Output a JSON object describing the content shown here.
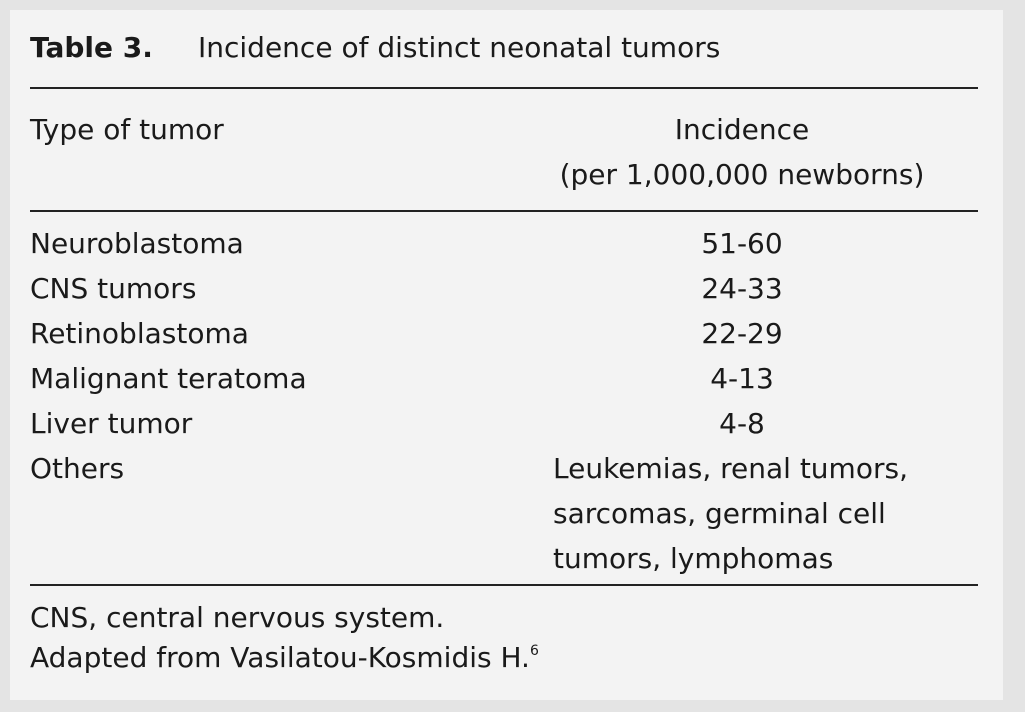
{
  "table": {
    "label": "Table 3.",
    "title": "Incidence of distinct neonatal tumors",
    "header": {
      "type": "Type of tumor",
      "incidence": "Incidence",
      "unit": "(per 1,000,000 newborns)"
    },
    "rows": [
      [
        "Neuroblastoma",
        "51-60"
      ],
      [
        "CNS tumors",
        "24-33"
      ],
      [
        "Retinoblastoma",
        "22-29"
      ],
      [
        "Malignant teratoma",
        "4-13"
      ],
      [
        "Liver tumor",
        "4-8"
      ],
      [
        "Others",
        [
          "Leukemias, renal tumors,",
          "sarcomas, germinal cell",
          "tumors, lymphomas"
        ]
      ]
    ],
    "footnotes": [
      {
        "text": "CNS, central nervous system."
      },
      {
        "text": "Adapted from Vasilatou-Kosmidis H.",
        "ref": "6"
      }
    ]
  }
}
